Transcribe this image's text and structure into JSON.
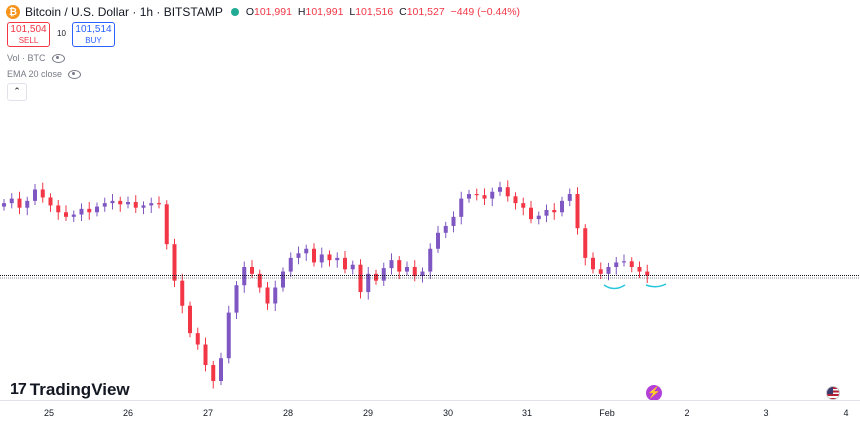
{
  "header": {
    "logo_glyph": "₿",
    "symbol": "Bitcoin / U.S. Dollar · 1h · BITSTAMP",
    "open_label": "O",
    "open": "101,991",
    "high_label": "H",
    "high": "101,991",
    "low_label": "L",
    "low": "101,516",
    "close_label": "C",
    "close": "101,527",
    "change": "−449 (−0.44%)"
  },
  "trade": {
    "sell_price": "101,504",
    "sell_label": "SELL",
    "spread": "10",
    "buy_price": "101,514",
    "buy_label": "BUY"
  },
  "indicators": [
    "Vol · BTC",
    "EMA 20 close"
  ],
  "collapse_glyph": "⌃",
  "brand": {
    "mark": "17",
    "name": "TradingView"
  },
  "time_axis": [
    "25",
    "26",
    "27",
    "28",
    "29",
    "30",
    "31",
    "Feb",
    "2",
    "3",
    "4"
  ],
  "colors": {
    "up": "#7e57c2",
    "down": "#f23645",
    "support": "#131722",
    "annotation": "#26c6da"
  },
  "chart_data": {
    "type": "candlestick",
    "x_categories": [
      "25",
      "26",
      "27",
      "28",
      "29",
      "30",
      "31",
      "Feb"
    ],
    "support_level": 101527,
    "closes": [
      104700,
      104900,
      104500,
      104800,
      105300,
      104950,
      104600,
      104300,
      104100,
      104200,
      104450,
      104300,
      104550,
      104700,
      104800,
      104650,
      104750,
      104500,
      104600,
      104700,
      104650,
      102900,
      101300,
      100200,
      99000,
      98500,
      97600,
      96900,
      97900,
      99900,
      101100,
      101900,
      101600,
      101000,
      100300,
      101000,
      101700,
      102300,
      102500,
      102700,
      102100,
      102450,
      102200,
      102300,
      101800,
      102000,
      100800,
      101600,
      101300,
      101850,
      102200,
      101700,
      101900,
      101500,
      101700,
      102700,
      103400,
      103700,
      104100,
      104900,
      105100,
      105050,
      104900,
      105200,
      105400,
      105000,
      104700,
      104500,
      104000,
      104150,
      104400,
      104300,
      104800,
      105100,
      103600,
      102300,
      101800,
      101600,
      101900,
      102100,
      102150,
      101900,
      101700,
      101527
    ]
  }
}
